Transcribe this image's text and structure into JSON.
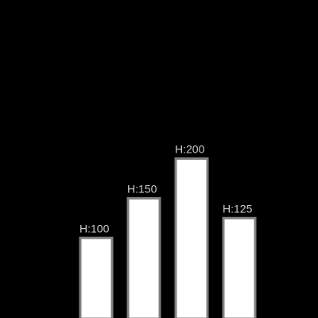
{
  "colors": {
    "background": "#000000",
    "bar_fill": "#ffffff",
    "bar_stroke": "#808080",
    "label_color": "#cccccc"
  },
  "chart_data": {
    "type": "bar",
    "categories": [
      "",
      "",
      "",
      ""
    ],
    "values": [
      100,
      150,
      200,
      125
    ],
    "data_labels": [
      "H:100",
      "H:150",
      "H:200",
      "H:125"
    ],
    "title": "",
    "xlabel": "",
    "ylabel": "",
    "ylim": [
      0,
      400
    ],
    "grid": false,
    "legend": "none"
  }
}
